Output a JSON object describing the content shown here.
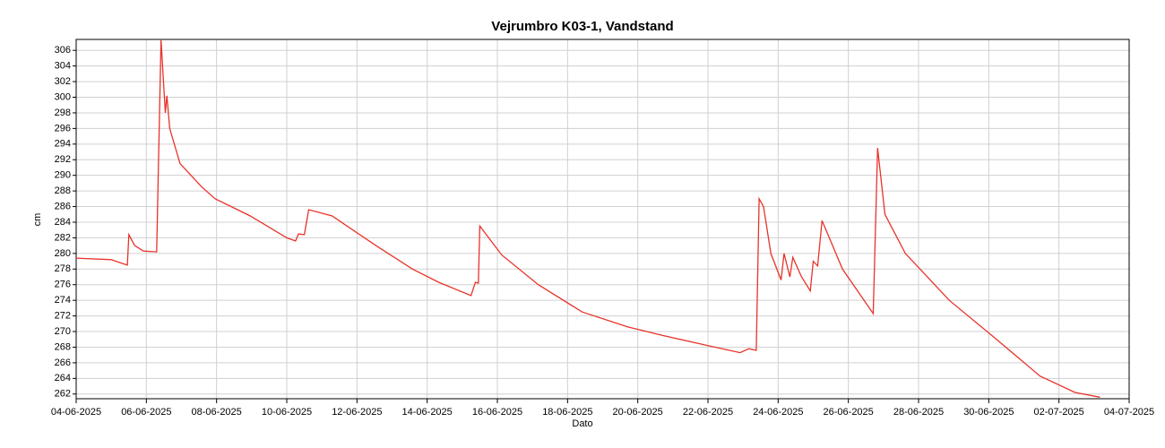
{
  "chart_data": {
    "type": "line",
    "title": "Vejrumbro K03-1, Vandstand",
    "xlabel": "Dato",
    "ylabel": "cm",
    "x": [
      "2025-06-04T00:00",
      "2025-06-05T00:00",
      "2025-06-05T11:00",
      "2025-06-05T12:00",
      "2025-06-05T16:00",
      "2025-06-05T22:00",
      "2025-06-06T07:00",
      "2025-06-06T10:00",
      "2025-06-06T13:00",
      "2025-06-06T14:00",
      "2025-06-06T16:00",
      "2025-06-06T23:00",
      "2025-06-07T14:00",
      "2025-06-07T23:00",
      "2025-06-08T23:00",
      "2025-06-10T00:00",
      "2025-06-10T06:00",
      "2025-06-10T08:00",
      "2025-06-10T12:00",
      "2025-06-10T15:00",
      "2025-06-11T07:00",
      "2025-06-12T13:00",
      "2025-06-13T14:00",
      "2025-06-14T08:00",
      "2025-06-15T06:00",
      "2025-06-15T09:00",
      "2025-06-15T11:00",
      "2025-06-15T12:00",
      "2025-06-16T03:00",
      "2025-06-17T04:00",
      "2025-06-18T10:00",
      "2025-06-19T17:00",
      "2025-06-20T17:00",
      "2025-06-22T00:00",
      "2025-06-22T22:00",
      "2025-06-23T04:00",
      "2025-06-23T09:00",
      "2025-06-23T11:00",
      "2025-06-23T14:00",
      "2025-06-23T19:00",
      "2025-06-24T02:00",
      "2025-06-24T04:00",
      "2025-06-24T08:00",
      "2025-06-24T10:00",
      "2025-06-24T16:00",
      "2025-06-24T22:00",
      "2025-06-25T00:00",
      "2025-06-25T03:00",
      "2025-06-25T06:00",
      "2025-06-25T20:00",
      "2025-06-26T17:00",
      "2025-06-26T20:00",
      "2025-06-27T01:00",
      "2025-06-27T15:00",
      "2025-06-28T21:00",
      "2025-06-30T04:00",
      "2025-07-01T11:00",
      "2025-07-02T11:00",
      "2025-07-03T04:00"
    ],
    "values": [
      279.4,
      279.2,
      278.5,
      282.4,
      281,
      280.3,
      280.2,
      307.3,
      298,
      300.2,
      296,
      291.5,
      288.5,
      287,
      284.8,
      282,
      281.6,
      282.5,
      282.4,
      285.6,
      284.8,
      281,
      278,
      276.3,
      274.6,
      276.3,
      276.2,
      283.5,
      279.8,
      276,
      272.5,
      270.6,
      269.5,
      268.2,
      267.3,
      267.8,
      267.6,
      287,
      286,
      280,
      276.6,
      280,
      277,
      279.5,
      277,
      275.2,
      279,
      278.4,
      284.2,
      278,
      272.3,
      293.5,
      285,
      280,
      274,
      269.2,
      264.3,
      262.2,
      261.6
    ],
    "color": "#e8332a",
    "xlim": [
      "2025-06-04T00:00",
      "2025-07-04T00:00"
    ],
    "xticks": [
      {
        "value": "2025-06-04T00:00",
        "label": "04-06-2025"
      },
      {
        "value": "2025-06-06T00:00",
        "label": "06-06-2025"
      },
      {
        "value": "2025-06-08T00:00",
        "label": "08-06-2025"
      },
      {
        "value": "2025-06-10T00:00",
        "label": "10-06-2025"
      },
      {
        "value": "2025-06-12T00:00",
        "label": "12-06-2025"
      },
      {
        "value": "2025-06-14T00:00",
        "label": "14-06-2025"
      },
      {
        "value": "2025-06-16T00:00",
        "label": "16-06-2025"
      },
      {
        "value": "2025-06-18T00:00",
        "label": "18-06-2025"
      },
      {
        "value": "2025-06-20T00:00",
        "label": "20-06-2025"
      },
      {
        "value": "2025-06-22T00:00",
        "label": "22-06-2025"
      },
      {
        "value": "2025-06-24T00:00",
        "label": "24-06-2025"
      },
      {
        "value": "2025-06-26T00:00",
        "label": "26-06-2025"
      },
      {
        "value": "2025-06-28T00:00",
        "label": "28-06-2025"
      },
      {
        "value": "2025-06-30T00:00",
        "label": "30-06-2025"
      },
      {
        "value": "2025-07-02T00:00",
        "label": "02-07-2025"
      },
      {
        "value": "2025-07-04T00:00",
        "label": "04-07-2025"
      }
    ],
    "ylim": [
      261.4,
      307.4
    ],
    "yticks": [
      262,
      264,
      266,
      268,
      270,
      272,
      274,
      276,
      278,
      280,
      282,
      284,
      286,
      288,
      290,
      292,
      294,
      296,
      298,
      300,
      302,
      304,
      306
    ],
    "grid": true
  }
}
